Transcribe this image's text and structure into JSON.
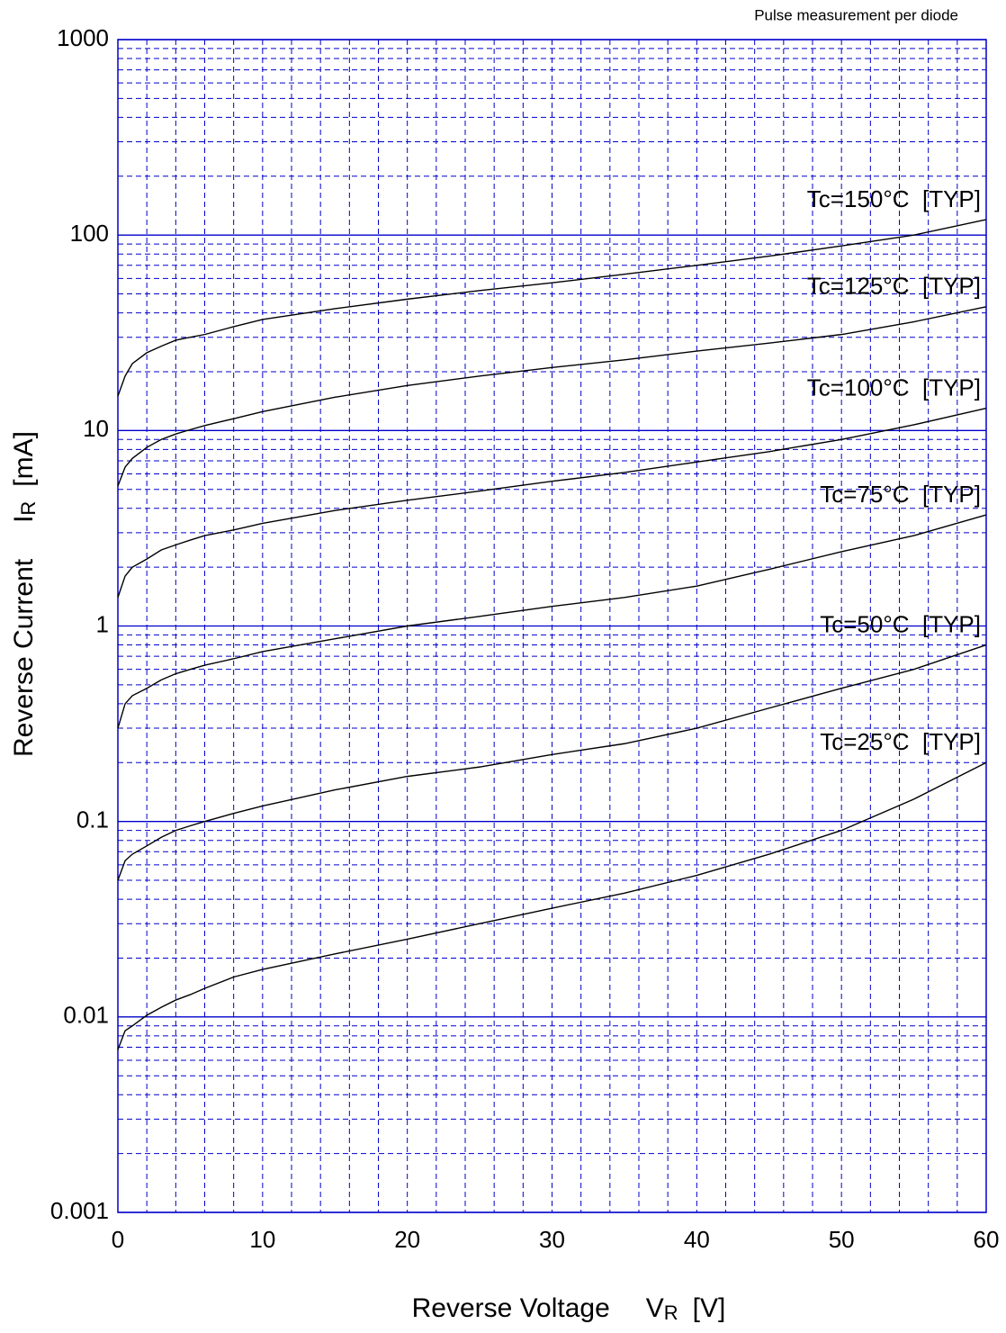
{
  "chart_data": {
    "type": "line",
    "annotation": "Pulse measurement per diode",
    "xlabel": {
      "text": "Reverse Voltage",
      "symbol": "V",
      "subscript": "R",
      "unit": "[V]"
    },
    "ylabel": {
      "text": "Reverse Current",
      "symbol": "I",
      "subscript": "R",
      "unit": "[mA]"
    },
    "x": [
      0,
      0.5,
      1,
      2,
      3,
      4,
      5,
      6,
      8,
      10,
      15,
      20,
      25,
      30,
      35,
      40,
      45,
      50,
      55,
      60
    ],
    "series": [
      {
        "name": "Tc=150°C  [TYP]",
        "color": "#000000",
        "values": [
          15,
          19,
          22,
          25,
          27,
          29,
          30,
          31,
          34,
          37,
          42,
          47,
          52,
          57,
          63,
          70,
          78,
          88,
          100,
          120
        ]
      },
      {
        "name": "Tc=125°C  [TYP]",
        "color": "#000000",
        "values": [
          5.2,
          6.5,
          7.2,
          8.2,
          9,
          9.6,
          10.1,
          10.6,
          11.5,
          12.5,
          14.8,
          17,
          19,
          21,
          23,
          25.5,
          28,
          31,
          36,
          43
        ]
      },
      {
        "name": "Tc=100°C  [TYP]",
        "color": "#000000",
        "values": [
          1.4,
          1.8,
          2,
          2.2,
          2.45,
          2.6,
          2.75,
          2.9,
          3.1,
          3.35,
          3.9,
          4.4,
          4.9,
          5.5,
          6.1,
          6.9,
          7.8,
          9,
          10.7,
          13
        ]
      },
      {
        "name": "Tc=75°C  [TYP]",
        "color": "#000000",
        "values": [
          0.3,
          0.4,
          0.44,
          0.48,
          0.53,
          0.57,
          0.6,
          0.63,
          0.68,
          0.74,
          0.86,
          1.0,
          1.12,
          1.26,
          1.4,
          1.6,
          1.95,
          2.4,
          2.9,
          3.7
        ]
      },
      {
        "name": "Tc=50°C  [TYP]",
        "color": "#000000",
        "values": [
          0.05,
          0.063,
          0.068,
          0.075,
          0.083,
          0.09,
          0.095,
          0.1,
          0.11,
          0.12,
          0.145,
          0.17,
          0.19,
          0.22,
          0.25,
          0.3,
          0.38,
          0.48,
          0.6,
          0.8
        ]
      },
      {
        "name": "Tc=25°C  [TYP]",
        "color": "#000000",
        "values": [
          0.0068,
          0.0085,
          0.009,
          0.0102,
          0.0112,
          0.0122,
          0.013,
          0.014,
          0.016,
          0.0175,
          0.021,
          0.025,
          0.03,
          0.036,
          0.043,
          0.053,
          0.068,
          0.09,
          0.13,
          0.2
        ]
      }
    ],
    "xlim": [
      0,
      60
    ],
    "xticks": [
      0,
      10,
      20,
      30,
      40,
      50,
      60
    ],
    "ylim": [
      0.001,
      1000
    ],
    "yticks": [
      0.001,
      0.01,
      0.1,
      1,
      10,
      100,
      1000
    ],
    "yscale": "log",
    "grid": true,
    "grid_color": "#0000cc"
  }
}
